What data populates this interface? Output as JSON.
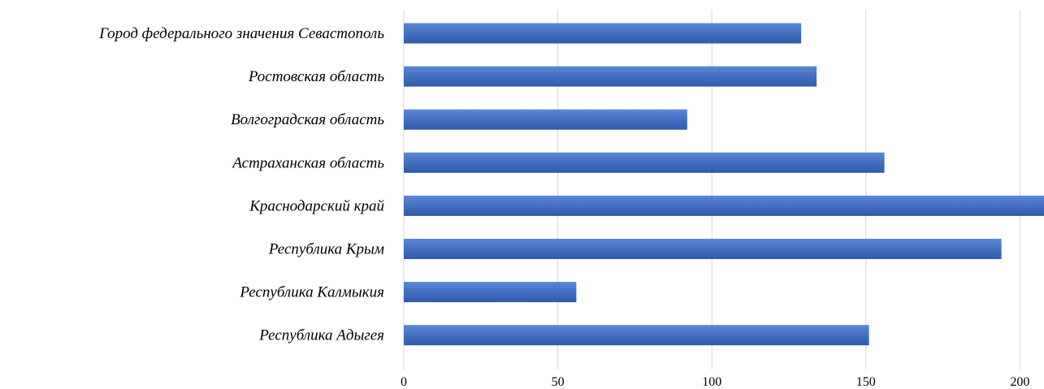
{
  "chart_data": {
    "type": "bar",
    "orientation": "horizontal",
    "categories": [
      "Республика Адыгея",
      "Республика Калмыкия",
      "Республика Крым",
      "Краснодарский край",
      "Астраханская область",
      "Волгоградская область",
      "Ростовская область",
      "Город федерального значения Севастополь"
    ],
    "values": [
      151,
      56,
      194,
      208,
      156,
      92,
      134,
      129
    ],
    "xticks": [
      "0",
      "50",
      "100",
      "150",
      "200"
    ],
    "xlim": [
      0,
      208
    ],
    "grid": true,
    "bar_color": "#4472c4",
    "title": "",
    "xlabel": "",
    "ylabel": ""
  }
}
